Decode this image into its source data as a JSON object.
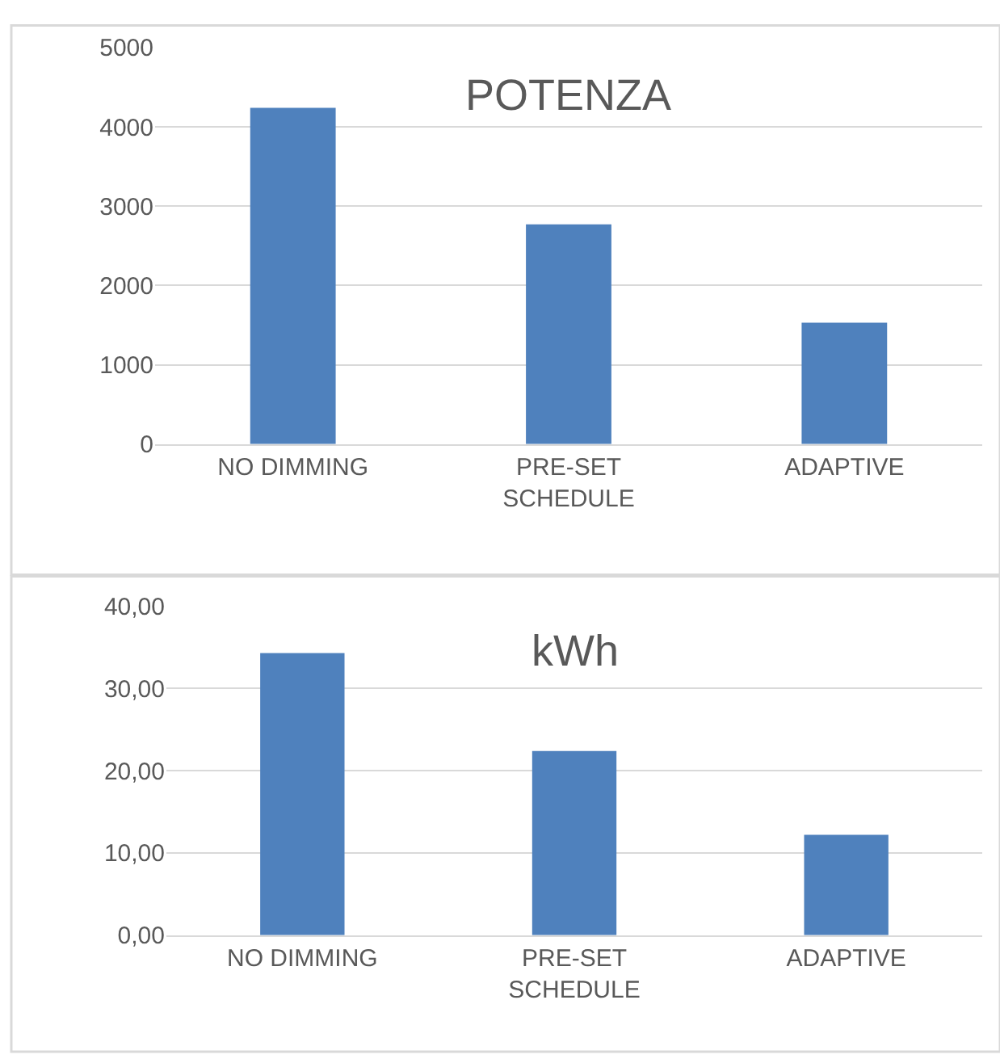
{
  "chart_data": [
    {
      "type": "bar",
      "title": "POTENZA",
      "categories": [
        "NO DIMMING",
        "PRE-SET SCHEDULE",
        "ADAPTIVE"
      ],
      "values": [
        4240,
        2770,
        1530
      ],
      "color": "#4f81bd",
      "ylim": [
        0,
        5000
      ],
      "yticks": [
        0,
        1000,
        2000,
        3000,
        4000,
        5000
      ],
      "grid": "y"
    },
    {
      "type": "bar",
      "title": "kWh",
      "categories": [
        "NO DIMMING",
        "PRE-SET SCHEDULE",
        "ADAPTIVE"
      ],
      "values": [
        34.3,
        22.4,
        12.2
      ],
      "color": "#4f81bd",
      "ylim": [
        0,
        40
      ],
      "yticks": [
        {
          "value": 0,
          "label": "0,00"
        },
        {
          "value": 10,
          "label": "10,00"
        },
        {
          "value": 20,
          "label": "20,00"
        },
        {
          "value": 30,
          "label": "30,00"
        },
        {
          "value": 40,
          "label": "40,00"
        }
      ],
      "grid": "y"
    }
  ]
}
